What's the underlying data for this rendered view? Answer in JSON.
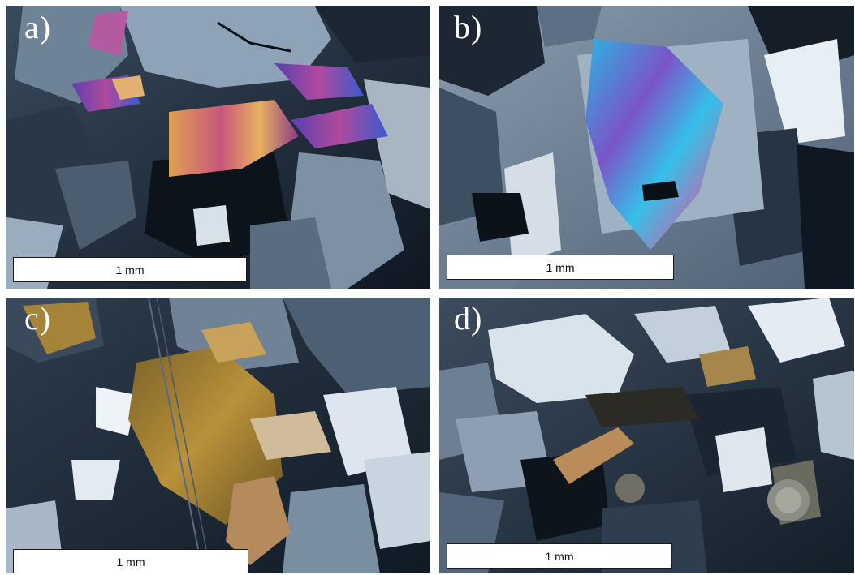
{
  "panels": [
    {
      "label": "a)",
      "scale": "1 mm"
    },
    {
      "label": "b)",
      "scale": "1 mm"
    },
    {
      "label": "c)",
      "scale": "1 mm"
    },
    {
      "label": "d)",
      "scale": "1 mm"
    }
  ],
  "colors": {
    "background": "#ffffff",
    "label_text": "#ffffff",
    "scalebar_fill": "#ffffff",
    "scalebar_text": "#111111"
  }
}
